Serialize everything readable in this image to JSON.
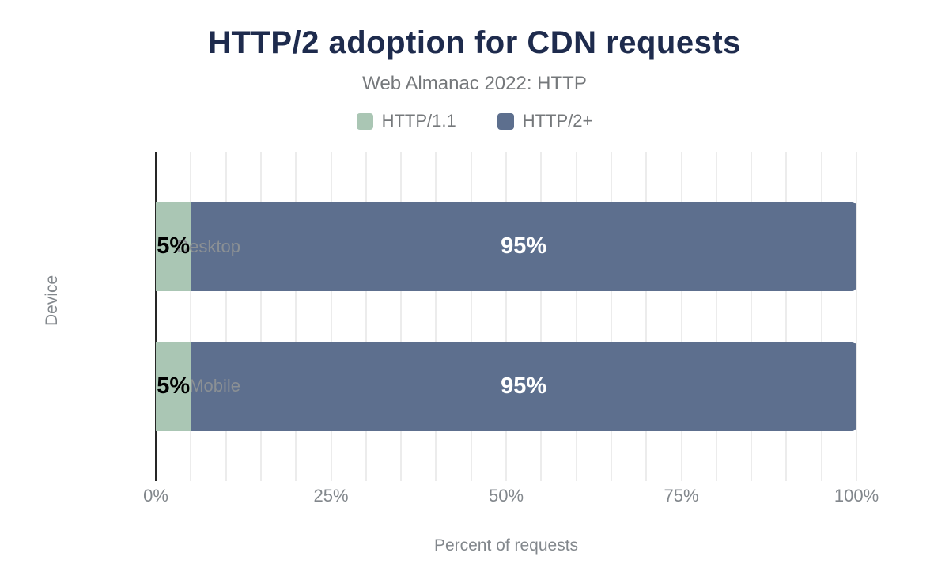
{
  "chart_data": {
    "type": "bar",
    "orientation": "horizontal",
    "stacked": true,
    "title": "HTTP/2 adoption for CDN requests",
    "subtitle": "Web Almanac 2022: HTTP",
    "categories": [
      "Desktop",
      "Mobile"
    ],
    "series": [
      {
        "name": "HTTP/1.1",
        "values": [
          5,
          5
        ],
        "color": "#aac6b4",
        "label_color": "#000000"
      },
      {
        "name": "HTTP/2+",
        "values": [
          95,
          95
        ],
        "color": "#5d6f8e",
        "label_color": "#ffffff"
      }
    ],
    "value_labels": [
      [
        "5%",
        "95%"
      ],
      [
        "5%",
        "95%"
      ]
    ],
    "xlabel": "Percent of requests",
    "ylabel": "Device",
    "xlim": [
      0,
      100
    ],
    "x_ticks": [
      "0%",
      "25%",
      "50%",
      "75%",
      "100%"
    ],
    "x_tick_values": [
      0,
      25,
      50,
      75,
      100
    ],
    "minor_grid_step_percent": 5,
    "grid": true,
    "legend_position": "top",
    "colors": {
      "title": "#1e2b4d",
      "subtitle_text": "#75787b",
      "axis_text": "#82878c",
      "axis_line": "#262626",
      "gridline": "#ececec",
      "background": "#ffffff"
    }
  }
}
